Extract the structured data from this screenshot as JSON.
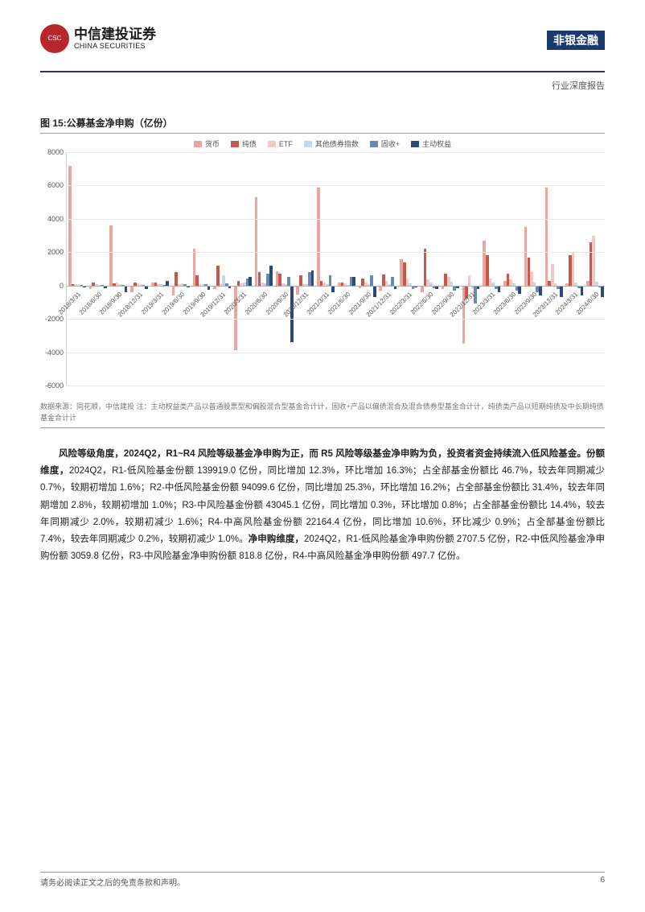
{
  "header": {
    "logo_cn": "中信建投证券",
    "logo_en": "CHINA SECURITIES",
    "sector": "非银金融",
    "report_type": "行业深度报告"
  },
  "figure": {
    "title": "图 15:公募基金净申购（亿份）",
    "legend": [
      {
        "label": "货币",
        "color": "#e9a6a0"
      },
      {
        "label": "纯债",
        "color": "#c4584f"
      },
      {
        "label": "ETF",
        "color": "#f0c8c5"
      },
      {
        "label": "其他债券指数",
        "color": "#c5d8e6"
      },
      {
        "label": "固收+",
        "color": "#6a88b0"
      },
      {
        "label": "主动权益",
        "color": "#2a4a7a"
      }
    ],
    "ylim": [
      -6000,
      8000
    ],
    "ytick_step": 2000,
    "grid_color": "#e8e8e8",
    "zero_color": "#b0b0b0",
    "axis_color": "#d0d0d0",
    "background_color": "#ffffff",
    "label_fontsize": 9,
    "x_labels": [
      "2018/3/31",
      "2018/6/30",
      "2018/9/30",
      "2018/12/31",
      "2019/3/31",
      "2019/6/30",
      "2019/9/30",
      "2019/12/31",
      "2020/3/31",
      "2020/6/30",
      "2020/9/30",
      "2020/12/31",
      "2021/3/31",
      "2021/6/30",
      "2021/9/30",
      "2021/12/31",
      "2022/3/31",
      "2022/6/30",
      "2022/9/30",
      "2022/12/31",
      "2023/3/31",
      "2023/6/30",
      "2023/9/30",
      "2023/12/31",
      "2024/3/31",
      "2024/6/30"
    ],
    "series": [
      {
        "key": "货币",
        "color": "#e9a6a0",
        "values": [
          7200,
          -200,
          3600,
          -400,
          200,
          -600,
          2200,
          -200,
          -3900,
          5300,
          850,
          -550,
          5900,
          200,
          -150,
          -300,
          1600,
          -400,
          -200,
          -3500,
          2700,
          300,
          3500,
          5900,
          150,
          300
        ]
      },
      {
        "key": "纯债",
        "color": "#c4584f",
        "values": [
          100,
          200,
          150,
          200,
          200,
          800,
          600,
          1200,
          300,
          800,
          700,
          600,
          300,
          200,
          400,
          650,
          1400,
          2200,
          700,
          -800,
          1800,
          700,
          1700,
          300,
          1800,
          2600
        ]
      },
      {
        "key": "ETF",
        "color": "#f0c8c5",
        "values": [
          80,
          60,
          200,
          150,
          100,
          80,
          60,
          100,
          150,
          200,
          150,
          100,
          200,
          150,
          200,
          300,
          400,
          350,
          500,
          600,
          400,
          350,
          800,
          1300,
          2000,
          3000
        ]
      },
      {
        "key": "其他债券指数",
        "color": "#c5d8e6",
        "values": [
          50,
          40,
          100,
          80,
          60,
          120,
          100,
          600,
          200,
          150,
          100,
          80,
          60,
          50,
          80,
          100,
          150,
          200,
          250,
          -200,
          200,
          150,
          200,
          150,
          200,
          250
        ]
      },
      {
        "key": "固收+",
        "color": "#6a88b0",
        "values": [
          30,
          20,
          50,
          40,
          30,
          80,
          60,
          150,
          400,
          700,
          500,
          800,
          600,
          500,
          600,
          500,
          -200,
          -150,
          -300,
          -1100,
          -200,
          -300,
          -400,
          -200,
          -150,
          -100
        ]
      },
      {
        "key": "主动权益",
        "color": "#2a4a7a",
        "values": [
          -100,
          -150,
          -400,
          -200,
          300,
          -100,
          -250,
          -150,
          500,
          1200,
          -3400,
          900,
          -400,
          500,
          -700,
          -200,
          -100,
          -200,
          -150,
          -200,
          -400,
          -500,
          -600,
          -700,
          -600,
          -700
        ]
      }
    ]
  },
  "footnote": "数据来源：同花顺，中信建投 注：主动权益类产品以普通股票型和偏股混合型基金合计计，固收+产品以偏债混合及混合债券型基金合计计，纯债类产品以短期纯债及中长期纯债基金合计计",
  "body": {
    "lead_bold": "风险等级角度，2024Q2，R1~R4 风险等级基金净申购为正，而 R5 风险等级基金净申购为负，投资者资金持续流入低风险基金。份额维度，",
    "text": "2024Q2，R1-低风险基金份额 139919.0 亿份，同比增加 12.3%，环比增加 16.3%；占全部基金份额比 46.7%，较去年同期减少 0.7%，较期初增加 1.6%；R2-中低风险基金份额 94099.6 亿份，同比增加 25.3%，环比增加 16.2%；占全部基金份额比 31.4%，较去年同期增加 2.8%，较期初增加 1.0%；R3-中风险基金份额 43045.1 亿份，同比增加 0.3%，环比增加 0.8%；占全部基金份额比 14.4%，较去年同期减少 2.0%，较期初减少 1.6%；R4-中高风险基金份额 22164.4 亿份，同比增加 10.6%，环比减少 0.9%；占全部基金份额比 7.4%，较去年同期减少 0.2%，较期初减少 1.0%。",
    "mid_bold": "净申购维度，",
    "text2": "2024Q2，R1-低风险基金净申购份额 2707.5 亿份，R2-中低风险基金净申购份额 3059.8 亿份，R3-中风险基金净申购份额 818.8 亿份，R4-中高风险基金净申购份额 497.7 亿份。"
  },
  "footer": {
    "disclaimer": "请务必阅读正文之后的免责条款和声明。",
    "page_no": "6"
  }
}
